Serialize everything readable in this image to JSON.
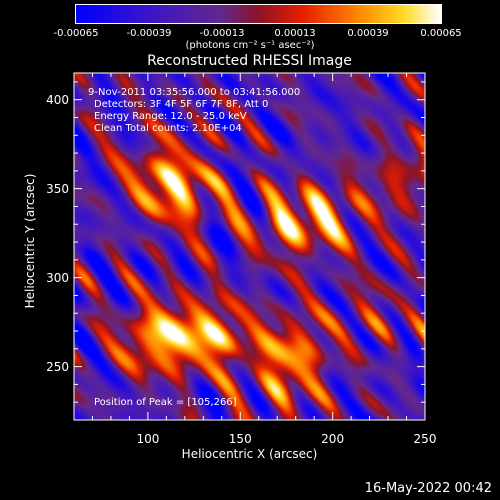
{
  "chart_data": {
    "type": "heatmap",
    "title": "Reconstructed RHESSI Image",
    "xlabel": "Heliocentric X (arcsec)",
    "ylabel": "Heliocentric Y (arcsec)",
    "xlim": [
      60,
      250
    ],
    "ylim": [
      220,
      415
    ],
    "xticks": [
      "100",
      "150",
      "200",
      "250"
    ],
    "xtick_values": [
      100,
      150,
      200,
      250
    ],
    "yticks": [
      "250",
      "300",
      "350",
      "400"
    ],
    "ytick_values": [
      250,
      300,
      350,
      400
    ],
    "colorbar": {
      "ticks": [
        "-0.00065",
        "-0.00039",
        "-0.00013",
        "0.00013",
        "0.00039",
        "0.00065"
      ],
      "tick_values": [
        -0.00065,
        -0.00039,
        -0.00013,
        0.00013,
        0.00039,
        0.00065
      ],
      "units": "(photons cm⁻² s⁻¹ asec⁻²)",
      "range": [
        -0.00065,
        0.00065
      ]
    },
    "annotations": {
      "time_range": "9-Nov-2011 03:35:56.000 to 03:41:56.000",
      "detectors": "Detectors: 3F 4F 5F 6F 7F 8F, Att 0",
      "energy": "Energy Range: 12.0 - 25.0 keV",
      "clean": "Clean    Total counts: 2.10E+04",
      "peak": "Position of Peak = [105,266]"
    },
    "bright_sources": [
      {
        "x": 105,
        "y": 266,
        "intensity": 0.00065
      },
      {
        "x": 135,
        "y": 268,
        "intensity": 0.0006
      },
      {
        "x": 178,
        "y": 262,
        "intensity": 0.00045
      },
      {
        "x": 175,
        "y": 240,
        "intensity": 0.0003
      },
      {
        "x": 118,
        "y": 348,
        "intensity": 0.0005
      },
      {
        "x": 105,
        "y": 360,
        "intensity": 0.00035
      },
      {
        "x": 175,
        "y": 330,
        "intensity": 0.00045
      },
      {
        "x": 198,
        "y": 335,
        "intensity": 0.0004
      },
      {
        "x": 240,
        "y": 355,
        "intensity": 0.00035
      },
      {
        "x": 222,
        "y": 280,
        "intensity": 0.0002
      }
    ],
    "grid": false
  },
  "footer": {
    "timestamp": "16-May-2022 00:42"
  }
}
